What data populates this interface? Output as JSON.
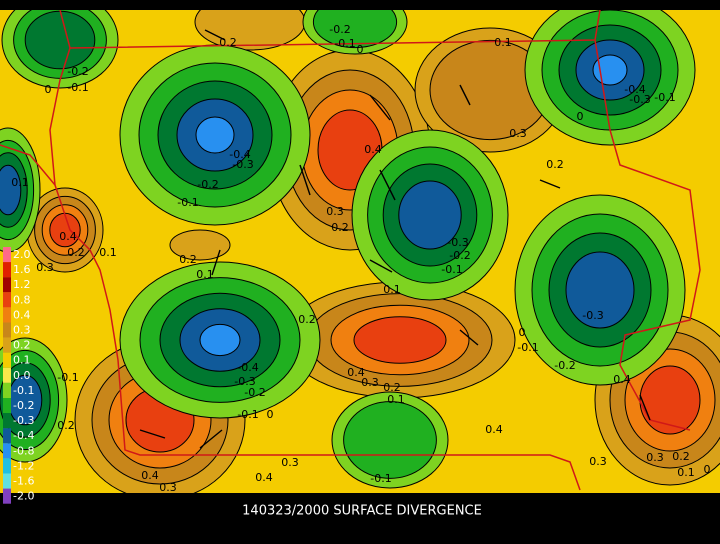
{
  "map": {
    "title": "140323/2000 SURFACE DIVERGENCE",
    "colorbar": [
      {
        "label": "2.0",
        "color": "#ff6a8a"
      },
      {
        "label": "1.6",
        "color": "#e02000"
      },
      {
        "label": "1.2",
        "color": "#a00000"
      },
      {
        "label": "0.8",
        "color": "#e84010"
      },
      {
        "label": "0.4",
        "color": "#f08010"
      },
      {
        "label": "0.3",
        "color": "#c8861a"
      },
      {
        "label": "0.2",
        "color": "#d9a21a"
      },
      {
        "label": "0.1",
        "color": "#f4cc00"
      },
      {
        "label": "0.0",
        "color": "#f6e84a"
      },
      {
        "label": "-0.1",
        "color": "#7ed321"
      },
      {
        "label": "-0.2",
        "color": "#20b020"
      },
      {
        "label": "-0.3",
        "color": "#007830"
      },
      {
        "label": "-0.4",
        "color": "#105a9a"
      },
      {
        "label": "-0.8",
        "color": "#2890f0"
      },
      {
        "label": "-1.2",
        "color": "#20c0e0"
      },
      {
        "label": "-1.6",
        "color": "#60e0e0"
      },
      {
        "label": "-2.0",
        "color": "#8040c0"
      }
    ],
    "contour_labels": [
      "0.2",
      "-0.2",
      "-0.1",
      "0",
      "0.1",
      "-0.2",
      "0",
      "-0.1",
      "-0.4",
      "-0.3",
      "0.4",
      "-0.2",
      "-0.1",
      "0.3",
      "0.2",
      "0.3",
      "0.2",
      "-0.4",
      "-0.3",
      "-0.1",
      "0",
      "0.1",
      "0.4",
      "0.2",
      "0.3",
      "0.1",
      "0.2",
      "0.1",
      "-0.3",
      "-0.2",
      "-0.1",
      "0.1",
      "-0.3",
      "0",
      "-0.1",
      "-0.2",
      "0.2",
      "-0.4",
      "-0.3",
      "-0.2",
      "-0.1",
      "0",
      "0.4",
      "0.3",
      "0.2",
      "0.1",
      "-0.1",
      "0.2",
      "0.4",
      "0.4",
      "0.3",
      "0.3",
      "0.3",
      "0.2",
      "0.1",
      "0",
      "0.4",
      "0.4",
      "0.3",
      "-0.1"
    ]
  }
}
